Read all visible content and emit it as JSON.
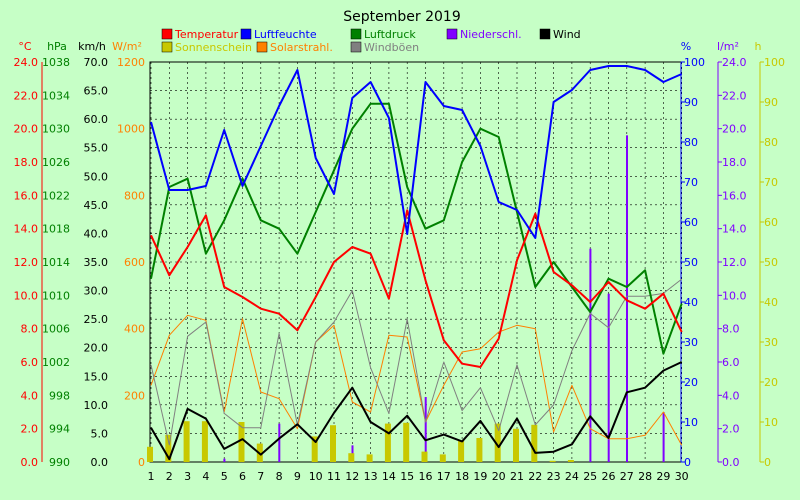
{
  "chart_data": {
    "type": "line",
    "title": "September 2019",
    "x": [
      1,
      2,
      3,
      4,
      5,
      6,
      7,
      8,
      9,
      10,
      11,
      12,
      13,
      14,
      15,
      16,
      17,
      18,
      19,
      20,
      21,
      22,
      23,
      24,
      25,
      26,
      27,
      28,
      29,
      30
    ],
    "axes": {
      "temperature": {
        "unit": "°C",
        "min": 0,
        "max": 24,
        "ticks": [
          "0.0",
          "2.0",
          "4.0",
          "6.0",
          "8.0",
          "10.0",
          "12.0",
          "14.0",
          "16.0",
          "18.0",
          "20.0",
          "22.0",
          "24.0"
        ],
        "color": "#ff0000"
      },
      "pressure": {
        "unit": "hPa",
        "min": 990,
        "max": 1038,
        "ticks": [
          "990",
          "994",
          "998",
          "1002",
          "1006",
          "1010",
          "1014",
          "1018",
          "1022",
          "1026",
          "1030",
          "1034",
          "1038"
        ],
        "color": "#008000"
      },
      "wind": {
        "unit": "km/h",
        "min": 0,
        "max": 70,
        "ticks": [
          "0.0",
          "5.0",
          "10.0",
          "15.0",
          "20.0",
          "25.0",
          "30.0",
          "35.0",
          "40.0",
          "45.0",
          "50.0",
          "55.0",
          "60.0",
          "65.0",
          "70.0"
        ],
        "color": "#000000"
      },
      "solar": {
        "unit": "W/m²",
        "min": 0,
        "max": 1200,
        "ticks": [
          "0",
          "200",
          "400",
          "600",
          "800",
          "1000",
          "1200"
        ],
        "color": "#ff8000"
      },
      "humidity": {
        "unit": "%",
        "min": 0,
        "max": 100,
        "ticks": [
          "0",
          "10",
          "20",
          "30",
          "40",
          "50",
          "60",
          "70",
          "80",
          "90",
          "100"
        ],
        "color": "#0000ff"
      },
      "precipitation": {
        "unit": "l/m²",
        "min": 0,
        "max": 24,
        "ticks": [
          "0.0",
          "2.0",
          "4.0",
          "6.0",
          "8.0",
          "10.0",
          "12.0",
          "14.0",
          "16.0",
          "18.0",
          "20.0",
          "22.0",
          "24.0"
        ],
        "color": "#8000ff"
      },
      "sunshine": {
        "unit": "h",
        "min": 0,
        "max": 100,
        "ticks": [
          "0",
          "10",
          "20",
          "30",
          "40",
          "50",
          "60",
          "70",
          "80",
          "90",
          "100"
        ],
        "color": "#c8c800"
      }
    },
    "series": [
      {
        "name": "Temperatur",
        "axis": "temperature",
        "color": "#ff0000",
        "kind": "line",
        "values": [
          13.6,
          11.2,
          12.9,
          14.8,
          10.5,
          9.9,
          9.2,
          8.9,
          7.9,
          9.9,
          12.0,
          12.9,
          12.5,
          9.8,
          15.1,
          10.9,
          7.3,
          5.9,
          5.7,
          7.4,
          12.1,
          14.9,
          11.4,
          10.6,
          9.6,
          10.8,
          9.7,
          9.2,
          10.1,
          7.8
        ]
      },
      {
        "name": "Luftfeuchte",
        "axis": "humidity",
        "color": "#0000ff",
        "kind": "line",
        "values": [
          85,
          68,
          68,
          69,
          83,
          69,
          79,
          89,
          98,
          76,
          67,
          91,
          95,
          86,
          57,
          95,
          89,
          88,
          79,
          65,
          63,
          56,
          90,
          93,
          98,
          99,
          99,
          98,
          95,
          97
        ]
      },
      {
        "name": "Luftdruck",
        "axis": "pressure",
        "color": "#008000",
        "kind": "line",
        "values": [
          1012,
          1023,
          1024,
          1015,
          1019,
          1024,
          1019,
          1018,
          1015,
          1020,
          1025,
          1030,
          1033,
          1033,
          1023,
          1018,
          1019,
          1026,
          1030,
          1029,
          1020,
          1011,
          1014,
          1011,
          1008,
          1012,
          1011,
          1013,
          1003,
          1009
        ]
      },
      {
        "name": "Niederschl.",
        "axis": "precipitation",
        "color": "#8000ff",
        "kind": "bar",
        "values": [
          0,
          0,
          0,
          0,
          0.2,
          0,
          0,
          2.3,
          0,
          0,
          0,
          1.0,
          0,
          0,
          0,
          3.9,
          0,
          0,
          0,
          0,
          0,
          0,
          0,
          0,
          12.8,
          10.1,
          19.6,
          0,
          3.0,
          0
        ]
      },
      {
        "name": "Wind",
        "axis": "wind",
        "color": "#000000",
        "kind": "line",
        "values": [
          6.0,
          0.5,
          9.3,
          7.6,
          2.3,
          4.0,
          1.3,
          4.1,
          6.6,
          3.5,
          8.6,
          13.0,
          7.0,
          5.0,
          8.1,
          3.8,
          4.8,
          3.6,
          7.2,
          2.6,
          7.6,
          1.6,
          1.8,
          3.1,
          8.0,
          4.2,
          12.2,
          13.0,
          16.0,
          17.5
        ]
      },
      {
        "name": "Sonnenschein",
        "axis": "sunshine",
        "color": "#c8c800",
        "kind": "bar",
        "values": [
          3.8,
          6.8,
          10.2,
          10.2,
          0,
          10.0,
          4.6,
          0,
          0,
          6.4,
          9.2,
          2.2,
          1.9,
          9.6,
          9.8,
          2.6,
          1.9,
          5.3,
          6.0,
          9.6,
          8.3,
          9.3,
          0.3,
          0.5,
          0,
          0,
          0,
          0,
          0,
          0
        ]
      },
      {
        "name": "Solarstrahl.",
        "axis": "solar",
        "color": "#ff8000",
        "kind": "line",
        "values": [
          230,
          380,
          440,
          425,
          150,
          430,
          210,
          190,
          100,
          360,
          410,
          180,
          150,
          380,
          375,
          120,
          230,
          330,
          340,
          390,
          410,
          400,
          90,
          230,
          100,
          70,
          70,
          80,
          150,
          50
        ]
      },
      {
        "name": "Windböen",
        "axis": "wind",
        "color": "#808080",
        "kind": "line",
        "values": [
          17.0,
          3.0,
          22.0,
          24.5,
          8.5,
          6.0,
          6.0,
          22.5,
          6.5,
          21.0,
          24.5,
          30.0,
          16.5,
          8.5,
          25.0,
          7.0,
          17.5,
          9.0,
          13.0,
          5.5,
          17.0,
          6.5,
          10.0,
          19.5,
          26.0,
          23.5,
          29.0,
          29.0,
          29.5,
          32.0
        ]
      }
    ],
    "legend": {
      "placement": "top"
    },
    "grid": true
  }
}
